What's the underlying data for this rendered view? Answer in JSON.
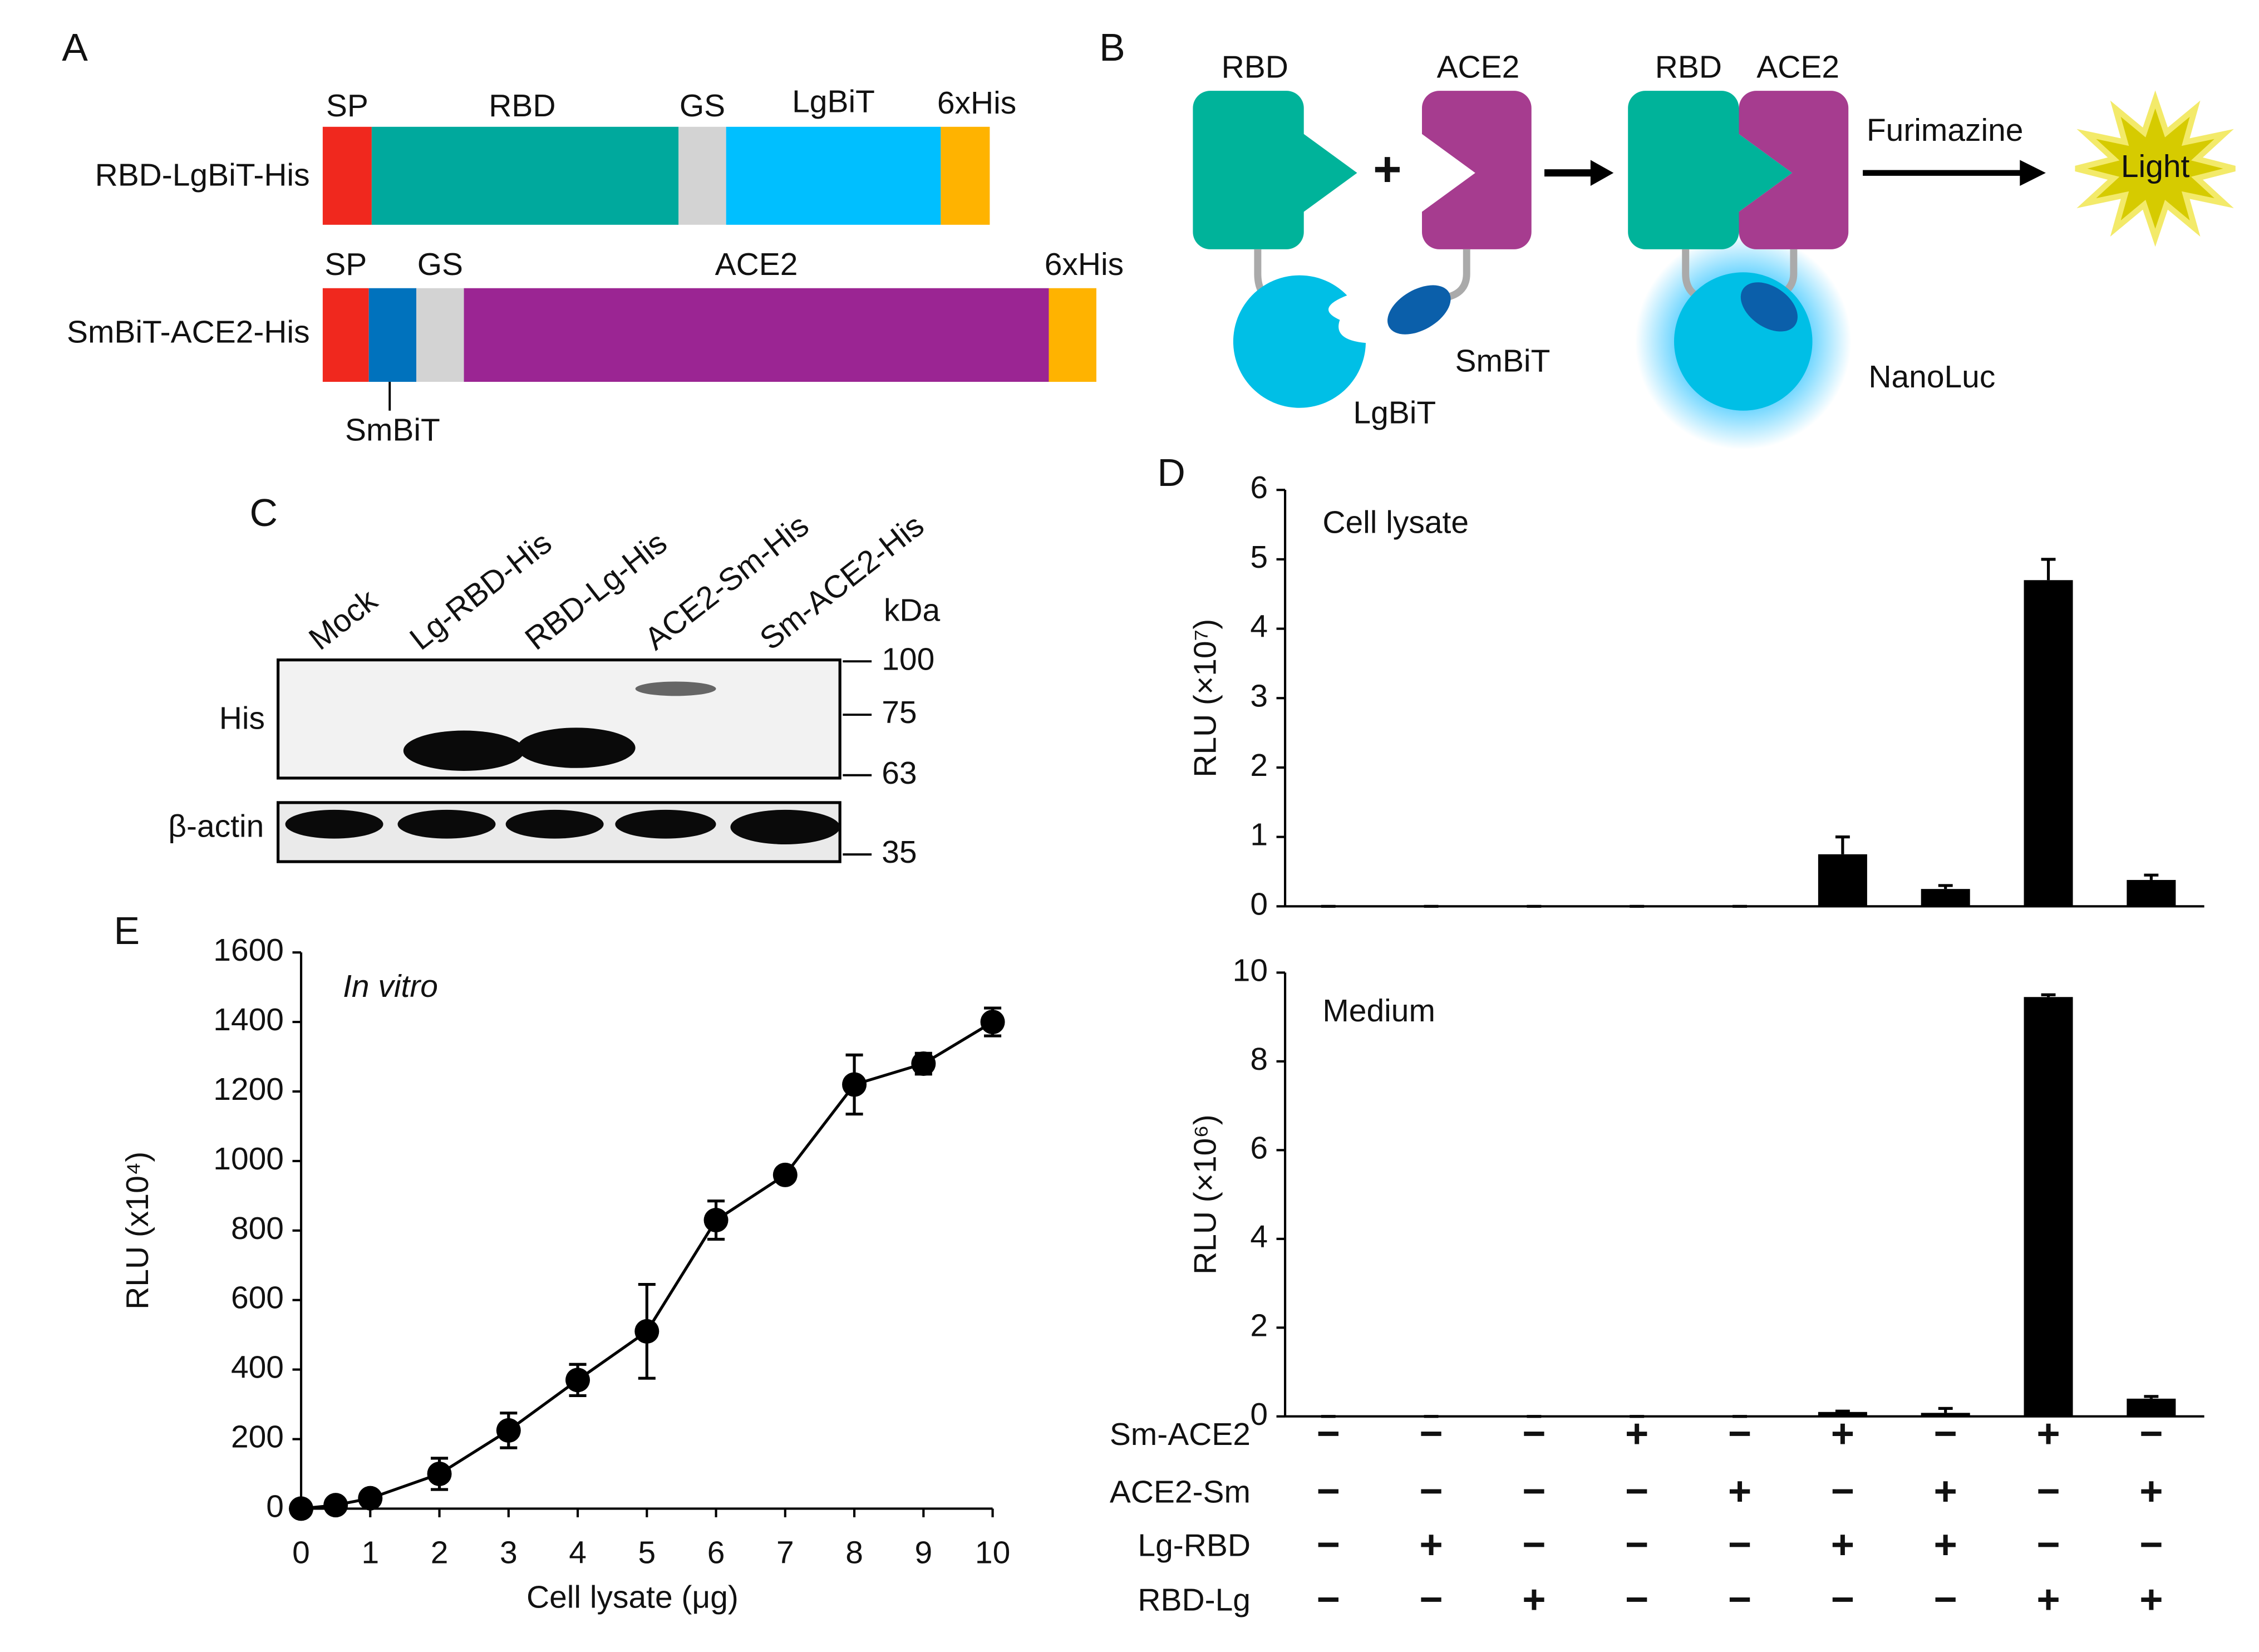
{
  "panel_labels": [
    "A",
    "B",
    "C",
    "D",
    "E"
  ],
  "panel_a": {
    "constructs": [
      {
        "name": "RBD-LgBiT-His",
        "segments": [
          "SP",
          "RBD",
          "GS",
          "LgBiT",
          "6xHis"
        ]
      },
      {
        "name": "SmBiT-ACE2-His",
        "segments": [
          "SP",
          "SmBiT",
          "GS",
          "ACE2",
          "6xHis"
        ]
      }
    ]
  },
  "panel_b": {
    "labels": [
      "RBD",
      "ACE2",
      "RBD",
      "ACE2",
      "Furimazine",
      "Light",
      "LgBiT",
      "SmBiT",
      "NanoLuc"
    ]
  },
  "panel_c": {
    "lanes": [
      "Mock",
      "Lg-RBD-His",
      "RBD-Lg-His",
      "ACE2-Sm-His",
      "Sm-ACE2-His"
    ],
    "unit": "kDa",
    "markers": [
      100,
      75,
      63,
      35
    ],
    "rows": [
      "His",
      "β-actin"
    ]
  },
  "chart_data": [
    {
      "type": "bar",
      "annotation": "Cell lysate",
      "ylabel": "RLU (×10⁷)",
      "categories": [
        null,
        null,
        null,
        null,
        null,
        null,
        null,
        null,
        null
      ],
      "values": [
        0,
        0,
        0,
        0,
        0,
        0.75,
        0.25,
        4.7,
        0.38
      ],
      "errors": [
        0,
        0,
        0,
        0,
        0,
        0.25,
        0.05,
        0.3,
        0.07
      ],
      "color": "#000000",
      "ylim": [
        0,
        6
      ],
      "yticks": [
        0,
        1,
        2,
        3,
        4,
        5,
        6
      ]
    },
    {
      "type": "bar",
      "annotation": "Medium",
      "ylabel": "RLU (×10⁶)",
      "categories": [
        null,
        null,
        null,
        null,
        null,
        null,
        null,
        null,
        null
      ],
      "values": [
        0,
        0,
        0,
        0,
        0,
        0.1,
        0.08,
        9.45,
        0.4
      ],
      "errors": [
        0,
        0,
        0,
        0,
        0,
        0.02,
        0.1,
        0.05,
        0.05
      ],
      "color": "#000000",
      "ylim": [
        0,
        10
      ],
      "yticks": [
        0,
        2,
        4,
        6,
        8,
        10
      ]
    },
    {
      "type": "line",
      "annotation": "In vitro",
      "xlabel": "Cell lysate (μg)",
      "ylabel": "RLU (x10⁴)",
      "x": [
        0,
        0.5,
        1,
        2,
        3,
        4,
        5,
        6,
        7,
        8,
        9,
        10
      ],
      "values": [
        0,
        10,
        30,
        100,
        225,
        370,
        510,
        830,
        960,
        1220,
        1280,
        1400
      ],
      "errors": [
        0,
        5,
        10,
        45,
        50,
        45,
        135,
        55,
        15,
        85,
        30,
        40
      ],
      "color": "#000000",
      "xlim": [
        0,
        10
      ],
      "xticks": [
        0,
        1,
        2,
        3,
        4,
        5,
        6,
        7,
        8,
        9,
        10
      ],
      "ylim": [
        0,
        1600
      ],
      "yticks": [
        0,
        200,
        400,
        600,
        800,
        1000,
        1200,
        1400,
        1600
      ]
    }
  ],
  "conditions": {
    "rows": [
      {
        "name": "Sm-ACE2",
        "signs": [
          "−",
          "−",
          "−",
          "+",
          "−",
          "+",
          "−",
          "+",
          "−"
        ]
      },
      {
        "name": "ACE2-Sm",
        "signs": [
          "−",
          "−",
          "−",
          "−",
          "+",
          "−",
          "+",
          "−",
          "+"
        ]
      },
      {
        "name": "Lg-RBD",
        "signs": [
          "−",
          "+",
          "−",
          "−",
          "−",
          "+",
          "+",
          "−",
          "−"
        ]
      },
      {
        "name": "RBD-Lg",
        "signs": [
          "−",
          "−",
          "+",
          "−",
          "−",
          "−",
          "−",
          "+",
          "+"
        ]
      }
    ]
  }
}
